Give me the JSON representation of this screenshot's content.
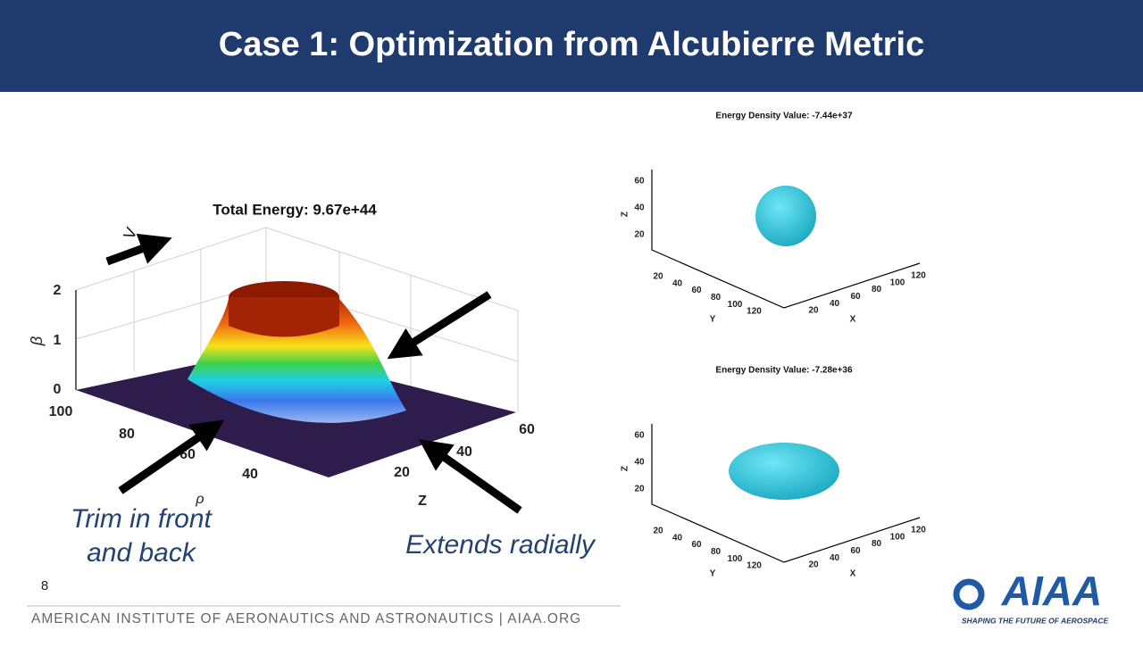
{
  "header": {
    "title": "Case 1: Optimization from Alcubierre Metric"
  },
  "left_plot": {
    "title": "Total Energy: 9.67e+44",
    "v_label": "V",
    "y_label": "β",
    "y_ticks": [
      "2",
      "1",
      "0"
    ],
    "rho_ticks": [
      "100",
      "80",
      "60",
      "40"
    ],
    "rho_label": "ρ",
    "z_ticks": [
      "20",
      "40",
      "60"
    ],
    "z_label": "Z"
  },
  "annotations": {
    "trim": [
      "Trim in front",
      "and back"
    ],
    "extends": "Extends radially"
  },
  "right_plots": [
    {
      "title": "Energy Density Value: -7.44e+37",
      "z_label": "Z",
      "z_ticks": [
        "60",
        "40",
        "20"
      ],
      "y_ticks": [
        "20",
        "40",
        "60",
        "80",
        "100",
        "120"
      ],
      "y_label": "Y",
      "x_ticks": [
        "20",
        "40",
        "60",
        "80",
        "100",
        "120"
      ],
      "x_label": "X"
    },
    {
      "title": "Energy Density Value: -7.28e+36",
      "z_label": "Z",
      "z_ticks": [
        "60",
        "40",
        "20"
      ],
      "y_ticks": [
        "20",
        "40",
        "60",
        "80",
        "100",
        "120"
      ],
      "y_label": "Y",
      "x_ticks": [
        "20",
        "40",
        "60",
        "80",
        "100",
        "120"
      ],
      "x_label": "X"
    }
  ],
  "footer": {
    "page_number": "8",
    "text": "AMERICAN INSTITUTE OF AERONAUTICS AND ASTRONAUTICS | AIAA.ORG",
    "logo": "AIAA",
    "tagline": "SHAPING THE FUTURE OF AEROSPACE"
  }
}
